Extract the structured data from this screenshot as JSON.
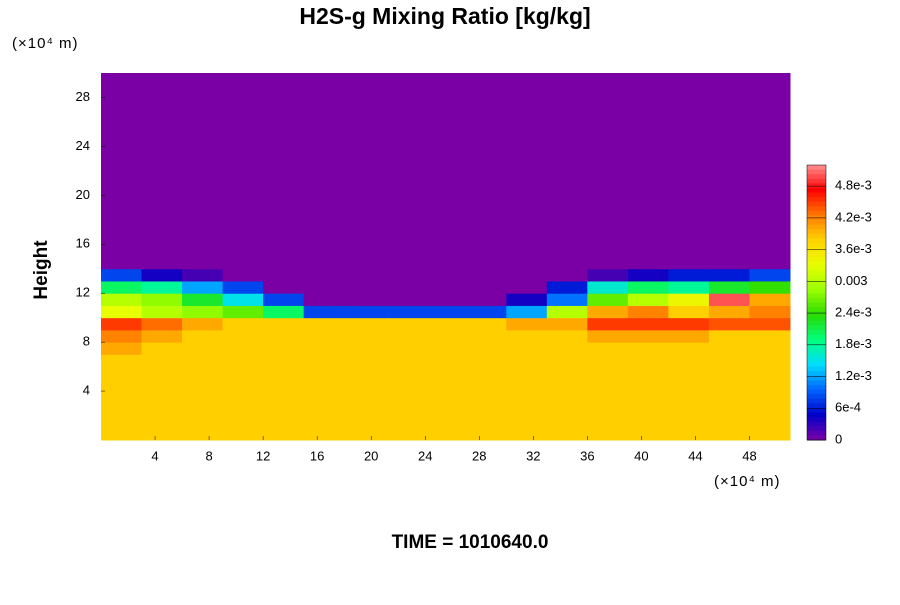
{
  "chart_data": {
    "type": "heatmap",
    "title": "H2S-g Mixing Ratio [kg/kg]",
    "y_label": "Height",
    "x_unit": "(×10⁴ m)",
    "y_unit": "(×10⁴ m)",
    "annotation": "TIME = 1010640.0",
    "xlim": [
      0,
      51
    ],
    "ylim": [
      0,
      30
    ],
    "xticks": [
      4,
      8,
      12,
      16,
      20,
      24,
      28,
      32,
      36,
      40,
      44,
      48
    ],
    "yticks": [
      4,
      8,
      12,
      16,
      20,
      24,
      28
    ],
    "clim": [
      0,
      0.0052
    ],
    "cticks": [
      0,
      {
        "value": 0.0006,
        "label": "6e-4"
      },
      {
        "value": 0.0012,
        "label": "1.2e-3"
      },
      {
        "value": 0.0018,
        "label": "1.8e-3"
      },
      {
        "value": 0.0024,
        "label": "2.4e-3"
      },
      0.003,
      {
        "value": 0.0036,
        "label": "3.6e-3"
      },
      {
        "value": 0.0042,
        "label": "4.2e-3"
      },
      {
        "value": 0.0048,
        "label": "4.8e-3"
      }
    ],
    "colormap": [
      "#7a00a6",
      "#0000c8",
      "#0064ff",
      "#00dcff",
      "#00ff80",
      "#28dc00",
      "#9aff00",
      "#e8ff00",
      "#ffd200",
      "#ff7800",
      "#ff0000",
      "#ff9090"
    ],
    "x_edges": [
      0,
      3,
      6,
      9,
      12,
      15,
      18,
      21,
      24,
      27,
      30,
      33,
      36,
      39,
      42,
      45,
      48,
      51
    ],
    "y_edges": [
      0,
      2,
      4,
      6,
      7,
      8,
      9,
      10,
      11,
      12,
      13,
      14,
      30
    ],
    "z": [
      [
        0.0038,
        0.0038,
        0.0038,
        0.0038,
        0.0038,
        0.0038,
        0.0038,
        0.0038,
        0.0038,
        0.0038,
        0.0038,
        0.0038,
        0.0038,
        0.0038,
        0.0038,
        0.0038,
        0.0038
      ],
      [
        0.0038,
        0.0038,
        0.0038,
        0.0038,
        0.0038,
        0.0038,
        0.0038,
        0.0038,
        0.0038,
        0.0038,
        0.0038,
        0.0038,
        0.0038,
        0.0038,
        0.0038,
        0.0038,
        0.0038
      ],
      [
        0.0038,
        0.0038,
        0.0038,
        0.0038,
        0.0038,
        0.0038,
        0.0038,
        0.0038,
        0.0038,
        0.0038,
        0.0038,
        0.0038,
        0.0038,
        0.0038,
        0.0038,
        0.0038,
        0.0038
      ],
      [
        0.0038,
        0.0038,
        0.0038,
        0.0038,
        0.0038,
        0.0038,
        0.0038,
        0.0038,
        0.0038,
        0.0038,
        0.0038,
        0.0038,
        0.0038,
        0.0038,
        0.0038,
        0.0038,
        0.0038
      ],
      [
        0.004,
        0.0038,
        0.0038,
        0.0038,
        0.0038,
        0.0038,
        0.0038,
        0.0038,
        0.0038,
        0.0038,
        0.0038,
        0.0038,
        0.0038,
        0.0038,
        0.0038,
        0.0038,
        0.0038
      ],
      [
        0.0042,
        0.004,
        0.0038,
        0.0038,
        0.0038,
        0.0038,
        0.0038,
        0.0038,
        0.0038,
        0.0038,
        0.0038,
        0.0038,
        0.004,
        0.004,
        0.004,
        0.0038,
        0.0038
      ],
      [
        0.0045,
        0.0043,
        0.004,
        0.0038,
        0.0038,
        0.0038,
        0.0038,
        0.0038,
        0.0038,
        0.0038,
        0.004,
        0.004,
        0.0045,
        0.0045,
        0.0045,
        0.0044,
        0.0044
      ],
      [
        0.0033,
        0.003,
        0.0028,
        0.0026,
        0.002,
        0.0008,
        0.0008,
        0.0008,
        0.0008,
        0.0008,
        0.0012,
        0.003,
        0.004,
        0.0042,
        0.0038,
        0.004,
        0.0042
      ],
      [
        0.003,
        0.0028,
        0.0022,
        0.0015,
        0.0008,
        0,
        0,
        0,
        0,
        0,
        0.0004,
        0.001,
        0.0026,
        0.003,
        0.0034,
        0.005,
        0.004
      ],
      [
        0.002,
        0.0018,
        0.0012,
        0.0008,
        0,
        0,
        0,
        0,
        0,
        0,
        0,
        0.0006,
        0.0016,
        0.002,
        0.0018,
        0.0022,
        0.0024
      ],
      [
        0.0008,
        0.0004,
        0.0002,
        0,
        0,
        0,
        0,
        0,
        0,
        0,
        0,
        0,
        0.0002,
        0.0004,
        0.0006,
        0.0006,
        0.0008
      ],
      [
        0,
        0,
        0,
        0,
        0,
        0,
        0,
        0,
        0,
        0,
        0,
        0,
        0,
        0,
        0,
        0,
        0
      ]
    ]
  }
}
